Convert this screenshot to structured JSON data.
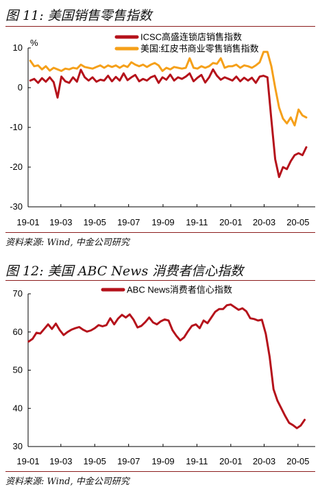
{
  "figures": [
    {
      "title": "图 11: 美国销售零售指数",
      "source": "资料来源: Wind, 中金公司研究"
    },
    {
      "title": "图 12: 美国 ABC News 消费者信心指数",
      "source": "资料来源: Wind, 中金公司研究"
    }
  ],
  "chart_data": [
    {
      "type": "line",
      "title": "",
      "xlabel": "",
      "ylabel": "%",
      "ylim": [
        -30,
        10
      ],
      "y_ticks": [
        -30,
        -20,
        -10,
        0,
        10
      ],
      "x_ticks": [
        "19-01",
        "19-03",
        "19-05",
        "19-07",
        "19-09",
        "19-11",
        "20-01",
        "20-03",
        "20-05"
      ],
      "x_range": [
        "2019-01",
        "2020-06"
      ],
      "legend_position": "top-right",
      "series": [
        {
          "name": "ICSC高盛连锁店销售指数",
          "color": "#b5121b",
          "points": [
            [
              "2019-01-05",
              1.8
            ],
            [
              "2019-01-12",
              2.2
            ],
            [
              "2019-01-19",
              1.2
            ],
            [
              "2019-01-26",
              2.4
            ],
            [
              "2019-02-02",
              1.5
            ],
            [
              "2019-02-09",
              2.6
            ],
            [
              "2019-02-16",
              1.4
            ],
            [
              "2019-02-23",
              -2.5
            ],
            [
              "2019-03-02",
              2.8
            ],
            [
              "2019-03-09",
              1.6
            ],
            [
              "2019-03-16",
              1.2
            ],
            [
              "2019-03-23",
              2.6
            ],
            [
              "2019-03-30",
              1.5
            ],
            [
              "2019-04-06",
              4.5
            ],
            [
              "2019-04-13",
              2.6
            ],
            [
              "2019-04-20",
              1.8
            ],
            [
              "2019-04-27",
              2.6
            ],
            [
              "2019-05-04",
              1.5
            ],
            [
              "2019-05-11",
              2.0
            ],
            [
              "2019-05-18",
              1.8
            ],
            [
              "2019-05-25",
              3.0
            ],
            [
              "2019-06-01",
              1.6
            ],
            [
              "2019-06-08",
              2.7
            ],
            [
              "2019-06-15",
              1.8
            ],
            [
              "2019-06-22",
              3.6
            ],
            [
              "2019-06-29",
              1.9
            ],
            [
              "2019-07-06",
              2.6
            ],
            [
              "2019-07-13",
              3.2
            ],
            [
              "2019-07-20",
              1.6
            ],
            [
              "2019-07-27",
              2.2
            ],
            [
              "2019-08-03",
              1.8
            ],
            [
              "2019-08-10",
              2.6
            ],
            [
              "2019-08-17",
              3.0
            ],
            [
              "2019-08-24",
              1.2
            ],
            [
              "2019-08-31",
              2.6
            ],
            [
              "2019-09-07",
              2.0
            ],
            [
              "2019-09-14",
              3.3
            ],
            [
              "2019-09-21",
              1.8
            ],
            [
              "2019-09-28",
              2.6
            ],
            [
              "2019-10-05",
              2.2
            ],
            [
              "2019-10-12",
              2.8
            ],
            [
              "2019-10-19",
              3.6
            ],
            [
              "2019-10-26",
              1.6
            ],
            [
              "2019-11-02",
              2.5
            ],
            [
              "2019-11-09",
              3.2
            ],
            [
              "2019-11-16",
              1.3
            ],
            [
              "2019-11-23",
              2.6
            ],
            [
              "2019-11-30",
              4.6
            ],
            [
              "2019-12-07",
              3.0
            ],
            [
              "2019-12-14",
              2.0
            ],
            [
              "2019-12-21",
              2.6
            ],
            [
              "2019-12-28",
              2.2
            ],
            [
              "2020-01-04",
              1.8
            ],
            [
              "2020-01-11",
              2.8
            ],
            [
              "2020-01-18",
              1.6
            ],
            [
              "2020-01-25",
              2.5
            ],
            [
              "2020-02-01",
              1.8
            ],
            [
              "2020-02-08",
              2.5
            ],
            [
              "2020-02-15",
              1.2
            ],
            [
              "2020-02-22",
              2.8
            ],
            [
              "2020-02-29",
              3.0
            ],
            [
              "2020-03-07",
              2.6
            ],
            [
              "2020-03-14",
              -8.0
            ],
            [
              "2020-03-21",
              -18.0
            ],
            [
              "2020-03-28",
              -22.5
            ],
            [
              "2020-04-04",
              -20.0
            ],
            [
              "2020-04-11",
              -20.5
            ],
            [
              "2020-04-18",
              -18.5
            ],
            [
              "2020-04-25",
              -17.0
            ],
            [
              "2020-05-02",
              -16.5
            ],
            [
              "2020-05-09",
              -17.0
            ],
            [
              "2020-05-16",
              -15.0
            ]
          ]
        },
        {
          "name": "美国:红皮书商业零售销售指数",
          "color": "#f5a01a",
          "points": [
            [
              "2019-01-05",
              6.8
            ],
            [
              "2019-01-12",
              5.4
            ],
            [
              "2019-01-19",
              5.6
            ],
            [
              "2019-01-26",
              4.6
            ],
            [
              "2019-02-02",
              5.4
            ],
            [
              "2019-02-09",
              4.3
            ],
            [
              "2019-02-16",
              5.0
            ],
            [
              "2019-02-23",
              4.6
            ],
            [
              "2019-03-02",
              4.2
            ],
            [
              "2019-03-09",
              4.8
            ],
            [
              "2019-03-16",
              4.6
            ],
            [
              "2019-03-23",
              5.0
            ],
            [
              "2019-03-30",
              4.8
            ],
            [
              "2019-04-06",
              5.8
            ],
            [
              "2019-04-13",
              5.2
            ],
            [
              "2019-04-20",
              5.0
            ],
            [
              "2019-04-27",
              4.8
            ],
            [
              "2019-05-04",
              5.2
            ],
            [
              "2019-05-11",
              5.6
            ],
            [
              "2019-05-18",
              5.0
            ],
            [
              "2019-05-25",
              5.6
            ],
            [
              "2019-06-01",
              5.2
            ],
            [
              "2019-06-08",
              5.6
            ],
            [
              "2019-06-15",
              5.0
            ],
            [
              "2019-06-22",
              5.6
            ],
            [
              "2019-06-29",
              5.2
            ],
            [
              "2019-07-06",
              6.4
            ],
            [
              "2019-07-13",
              5.8
            ],
            [
              "2019-07-20",
              5.4
            ],
            [
              "2019-07-27",
              5.8
            ],
            [
              "2019-08-03",
              5.2
            ],
            [
              "2019-08-10",
              5.8
            ],
            [
              "2019-08-17",
              6.2
            ],
            [
              "2019-08-24",
              5.6
            ],
            [
              "2019-08-31",
              4.2
            ],
            [
              "2019-09-07",
              5.0
            ],
            [
              "2019-09-14",
              4.6
            ],
            [
              "2019-09-21",
              5.2
            ],
            [
              "2019-09-28",
              5.0
            ],
            [
              "2019-10-05",
              4.8
            ],
            [
              "2019-10-12",
              5.0
            ],
            [
              "2019-10-19",
              7.4
            ],
            [
              "2019-10-26",
              5.0
            ],
            [
              "2019-11-02",
              4.8
            ],
            [
              "2019-11-09",
              5.4
            ],
            [
              "2019-11-16",
              5.0
            ],
            [
              "2019-11-23",
              5.4
            ],
            [
              "2019-11-30",
              6.2
            ],
            [
              "2019-12-07",
              6.0
            ],
            [
              "2019-12-14",
              7.4
            ],
            [
              "2019-12-21",
              5.0
            ],
            [
              "2019-12-28",
              5.4
            ],
            [
              "2020-01-04",
              5.4
            ],
            [
              "2020-01-11",
              5.8
            ],
            [
              "2020-01-18",
              5.0
            ],
            [
              "2020-01-25",
              5.6
            ],
            [
              "2020-02-01",
              5.4
            ],
            [
              "2020-02-08",
              5.0
            ],
            [
              "2020-02-15",
              5.6
            ],
            [
              "2020-02-22",
              6.4
            ],
            [
              "2020-02-29",
              9.0
            ],
            [
              "2020-03-07",
              9.0
            ],
            [
              "2020-03-14",
              5.4
            ],
            [
              "2020-03-21",
              0.0
            ],
            [
              "2020-03-28",
              -5.0
            ],
            [
              "2020-04-04",
              -7.8
            ],
            [
              "2020-04-11",
              -9.0
            ],
            [
              "2020-04-18",
              -7.5
            ],
            [
              "2020-04-25",
              -9.5
            ],
            [
              "2020-05-02",
              -5.5
            ],
            [
              "2020-05-09",
              -7.0
            ],
            [
              "2020-05-16",
              -7.5
            ]
          ]
        }
      ]
    },
    {
      "type": "line",
      "title": "",
      "xlabel": "",
      "ylabel": "",
      "ylim": [
        30,
        70
      ],
      "y_ticks": [
        30,
        40,
        50,
        60,
        70
      ],
      "x_ticks": [
        "19-01",
        "19-03",
        "19-05",
        "19-07",
        "19-09",
        "19-11",
        "20-01",
        "20-03",
        "20-05"
      ],
      "x_range": [
        "2019-01",
        "2020-06"
      ],
      "legend_position": "top-center",
      "series": [
        {
          "name": "ABC News消费者信心指数",
          "color": "#b5121b",
          "points": [
            [
              "2019-01-02",
              57.5
            ],
            [
              "2019-01-09",
              58.2
            ],
            [
              "2019-01-16",
              59.8
            ],
            [
              "2019-01-23",
              59.6
            ],
            [
              "2019-01-30",
              60.8
            ],
            [
              "2019-02-06",
              62.0
            ],
            [
              "2019-02-13",
              60.8
            ],
            [
              "2019-02-20",
              62.2
            ],
            [
              "2019-02-27",
              60.5
            ],
            [
              "2019-03-06",
              59.2
            ],
            [
              "2019-03-13",
              60.0
            ],
            [
              "2019-03-20",
              60.6
            ],
            [
              "2019-03-27",
              61.0
            ],
            [
              "2019-04-03",
              61.3
            ],
            [
              "2019-04-10",
              60.6
            ],
            [
              "2019-04-17",
              60.1
            ],
            [
              "2019-04-24",
              60.4
            ],
            [
              "2019-05-01",
              61.0
            ],
            [
              "2019-05-08",
              61.8
            ],
            [
              "2019-05-15",
              61.5
            ],
            [
              "2019-05-22",
              61.8
            ],
            [
              "2019-05-29",
              63.6
            ],
            [
              "2019-06-05",
              62.0
            ],
            [
              "2019-06-12",
              63.5
            ],
            [
              "2019-06-19",
              64.5
            ],
            [
              "2019-06-26",
              63.8
            ],
            [
              "2019-07-03",
              64.6
            ],
            [
              "2019-07-10",
              63.2
            ],
            [
              "2019-07-17",
              61.2
            ],
            [
              "2019-07-24",
              61.6
            ],
            [
              "2019-07-31",
              62.6
            ],
            [
              "2019-08-07",
              63.8
            ],
            [
              "2019-08-14",
              62.5
            ],
            [
              "2019-08-21",
              62.0
            ],
            [
              "2019-08-28",
              62.8
            ],
            [
              "2019-09-04",
              63.3
            ],
            [
              "2019-09-11",
              63.0
            ],
            [
              "2019-09-18",
              60.5
            ],
            [
              "2019-09-25",
              59.0
            ],
            [
              "2019-10-02",
              57.8
            ],
            [
              "2019-10-09",
              58.6
            ],
            [
              "2019-10-16",
              60.2
            ],
            [
              "2019-10-23",
              61.6
            ],
            [
              "2019-10-30",
              62.0
            ],
            [
              "2019-11-06",
              61.0
            ],
            [
              "2019-11-13",
              63.0
            ],
            [
              "2019-11-20",
              62.3
            ],
            [
              "2019-11-27",
              63.8
            ],
            [
              "2019-12-04",
              65.3
            ],
            [
              "2019-12-11",
              66.0
            ],
            [
              "2019-12-18",
              66.0
            ],
            [
              "2019-12-25",
              67.0
            ],
            [
              "2020-01-01",
              67.2
            ],
            [
              "2020-01-08",
              66.5
            ],
            [
              "2020-01-15",
              65.8
            ],
            [
              "2020-01-22",
              66.2
            ],
            [
              "2020-01-29",
              65.4
            ],
            [
              "2020-02-05",
              63.6
            ],
            [
              "2020-02-12",
              63.4
            ],
            [
              "2020-02-19",
              63.0
            ],
            [
              "2020-02-26",
              63.2
            ],
            [
              "2020-03-04",
              59.5
            ],
            [
              "2020-03-11",
              53.5
            ],
            [
              "2020-03-18",
              45.0
            ],
            [
              "2020-03-25",
              42.0
            ],
            [
              "2020-04-01",
              40.0
            ],
            [
              "2020-04-08",
              38.0
            ],
            [
              "2020-04-15",
              36.2
            ],
            [
              "2020-04-22",
              35.6
            ],
            [
              "2020-04-29",
              34.8
            ],
            [
              "2020-05-06",
              35.5
            ],
            [
              "2020-05-13",
              37.0
            ]
          ]
        }
      ]
    }
  ]
}
